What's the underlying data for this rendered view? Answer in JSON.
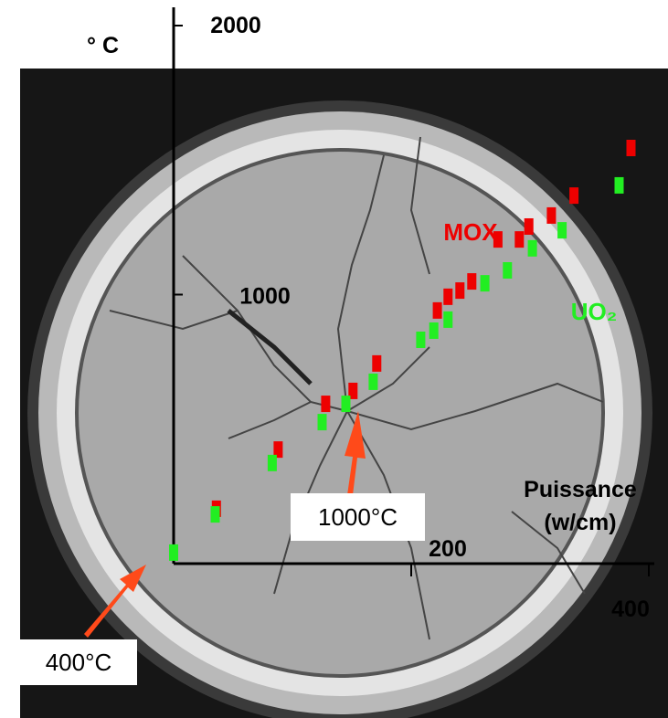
{
  "chart_data": {
    "type": "scatter",
    "y_label": "° C",
    "x_label": "Puissance (w/cm)",
    "xlim": [
      0,
      400
    ],
    "ylim": [
      0,
      2000
    ],
    "xticks": [
      200,
      400
    ],
    "yticks": [
      1000,
      2000
    ],
    "series": [
      {
        "name": "MOX",
        "color": "#ee0000",
        "x": [
          36,
          88,
          128,
          151,
          171,
          222,
          231,
          241,
          251,
          273,
          291,
          299,
          318,
          337,
          385
        ],
        "values": [
          204,
          424,
          594,
          642,
          744,
          941,
          992,
          1015,
          1049,
          1205,
          1205,
          1253,
          1294,
          1368,
          1545
        ]
      },
      {
        "name": "UO₂",
        "color": "#22ee22",
        "x": [
          0,
          35,
          83,
          125,
          145,
          168,
          208,
          219,
          231,
          262,
          281,
          302,
          327,
          375
        ],
        "values": [
          41,
          183,
          374,
          526,
          594,
          676,
          832,
          866,
          907,
          1042,
          1090,
          1172,
          1239,
          1406
        ]
      }
    ],
    "annotations": [
      "1000°C",
      "400°C"
    ]
  }
}
